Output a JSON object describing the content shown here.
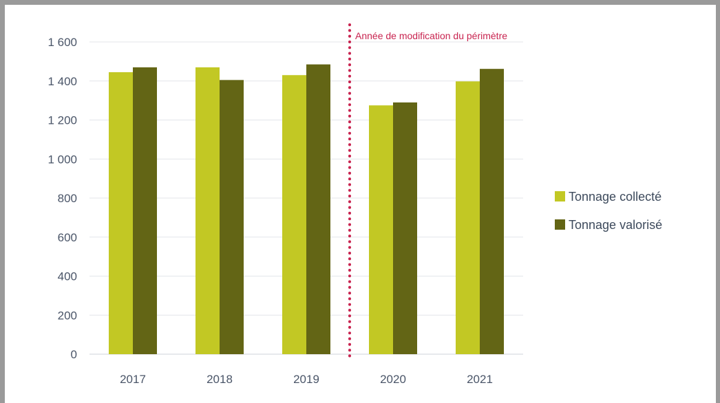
{
  "chart_data": {
    "type": "bar",
    "title": "",
    "xlabel": "",
    "ylabel": "",
    "categories": [
      "2017",
      "2018",
      "2019",
      "2020",
      "2021"
    ],
    "series": [
      {
        "name": "Tonnage collecté",
        "color": "#c2c824",
        "values": [
          1445,
          1470,
          1430,
          1275,
          1398
        ]
      },
      {
        "name": "Tonnage valorisé",
        "color": "#636515",
        "values": [
          1470,
          1405,
          1485,
          1290,
          1462
        ]
      }
    ],
    "ylim": [
      0,
      1600
    ],
    "yticks": [
      0,
      200,
      400,
      600,
      800,
      1000,
      1200,
      1400,
      1600
    ],
    "ytick_labels": [
      "0",
      "200",
      "400",
      "600",
      "800",
      "1 000",
      "1 200",
      "1 400",
      "1 600"
    ],
    "grid": true,
    "legend_position": "right",
    "annotation": {
      "text": "Année de modification du périmètre",
      "after_category": "2019",
      "color": "#c8234f"
    }
  }
}
